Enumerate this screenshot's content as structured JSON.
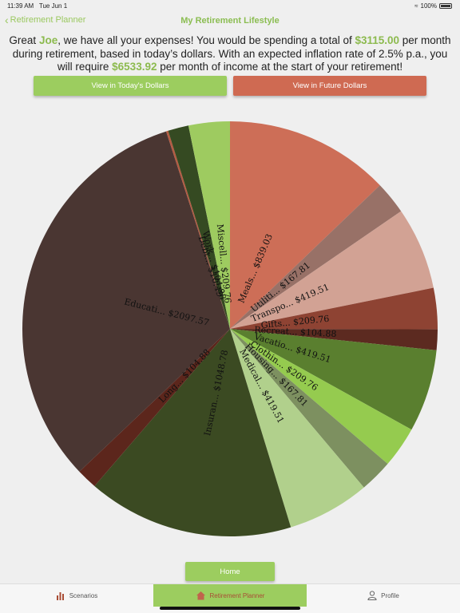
{
  "status_bar": {
    "time": "11:39 AM",
    "date": "Tue Jun 1",
    "battery": "100%"
  },
  "nav": {
    "back_label": "Retirement Planner",
    "title": "My Retirement Lifestyle"
  },
  "summary": {
    "t1": "Great ",
    "name": "Joe",
    "t2": ", we have all your expenses! You would be spending a total of ",
    "monthly_total": "$3115.00",
    "t3": " per month during retirement, based in today’s dollars. With an expected inflation rate of 2.5% p.a., you will require ",
    "required_income": "$6533.92",
    "t4": " per month of income at the start of your retirement!"
  },
  "buttons": {
    "today": "View in Today's Dollars",
    "future": "View in Future Dollars",
    "home": "Home"
  },
  "tabs": {
    "scenarios": "Scenarios",
    "planner": "Retirement Planner",
    "profile": "Profile"
  },
  "chart_data": {
    "type": "pie",
    "slices": [
      {
        "label": "Meals... $839.03",
        "value": 839.03,
        "color": "#cd6e57"
      },
      {
        "label": "Utiliti... $167.81",
        "value": 167.81,
        "color": "#987167"
      },
      {
        "label": "Transpo... $419.51",
        "value": 419.51,
        "color": "#d2a294"
      },
      {
        "label": "Gifts... $209.76",
        "value": 209.76,
        "color": "#8e4333"
      },
      {
        "label": "Recreat... $104.88",
        "value": 104.88,
        "color": "#5c2a20"
      },
      {
        "label": "Vacatio... $419.51",
        "value": 419.51,
        "color": "#5a7f2f"
      },
      {
        "label": "Clothin... $209.76",
        "value": 209.76,
        "color": "#95cb4f"
      },
      {
        "label": "Housing... $167.81",
        "value": 167.81,
        "color": "#7d9060"
      },
      {
        "label": "Medical... $419.51",
        "value": 419.51,
        "color": "#b1d08c"
      },
      {
        "label": "Insuran... $1048.78",
        "value": 1048.78,
        "color": "#3b4a22"
      },
      {
        "label": "Long... $104.88",
        "value": 104.88,
        "color": "#5c261c"
      },
      {
        "label": "Educati... $2097.57",
        "value": 2097.57,
        "color": "#4a3632"
      },
      {
        "label": "Debt... $10.49",
        "value": 10.49,
        "color": "#b45b42"
      },
      {
        "label": "Work... $104.88",
        "value": 104.88,
        "color": "#354a22"
      },
      {
        "label": "Miscell... $209.76",
        "value": 209.76,
        "color": "#9ecb60"
      }
    ]
  }
}
